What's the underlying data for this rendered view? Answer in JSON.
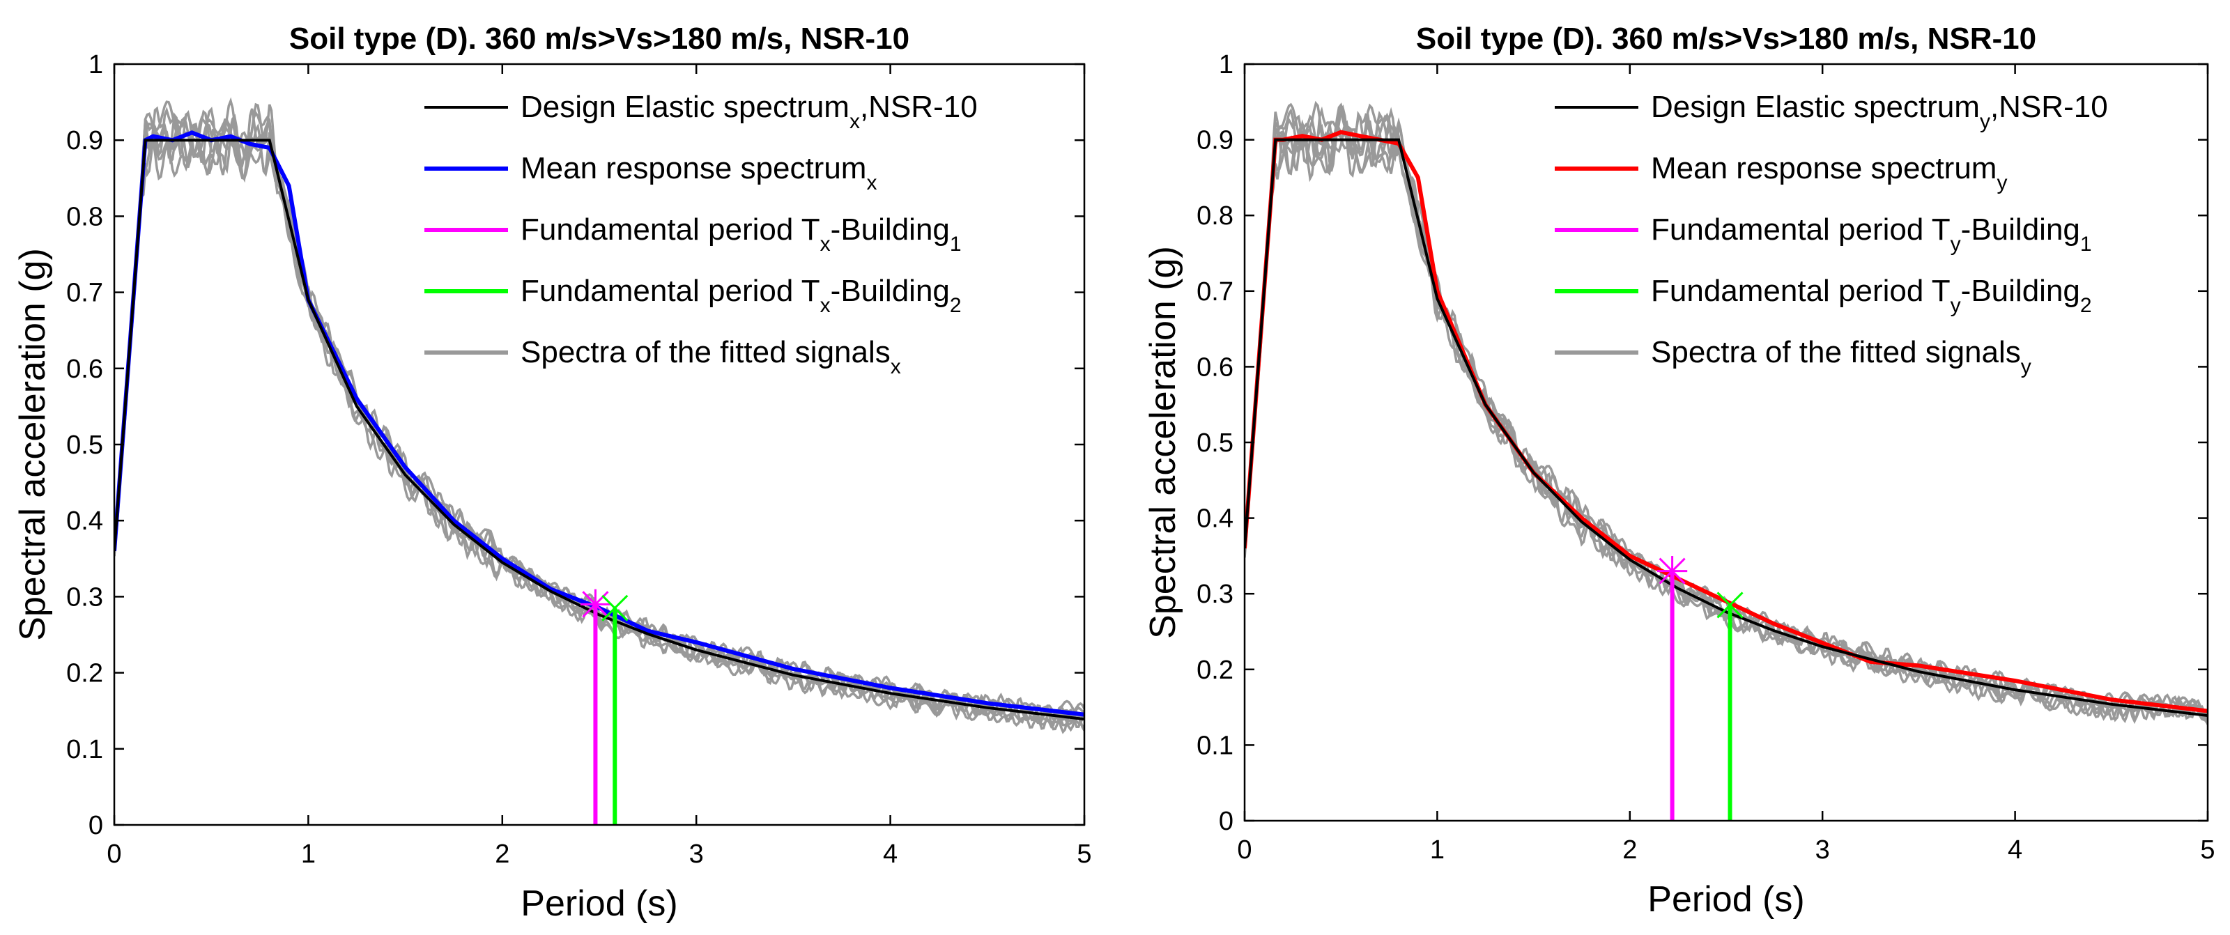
{
  "chart_data": [
    {
      "type": "line",
      "title": "Soil type (D). 360 m/s>Vs>180 m/s, NSR-10",
      "xlabel": "Period (s)",
      "ylabel": "Spectral acceleration (g)",
      "xlim": [
        0,
        5
      ],
      "ylim": [
        0,
        1
      ],
      "xticks": [
        "0",
        "1",
        "2",
        "3",
        "4",
        "5"
      ],
      "yticks": [
        "0",
        "0.1",
        "0.2",
        "0.3",
        "0.4",
        "0.5",
        "0.6",
        "0.7",
        "0.8",
        "0.9",
        "1"
      ],
      "grid": false,
      "legend_position": "top-right",
      "legend": [
        {
          "key": "design",
          "text": "Design Elastic spectrum",
          "sub": "x",
          "suffix": ",NSR-10",
          "color": "#000000"
        },
        {
          "key": "mean",
          "text": "Mean response spectrum",
          "sub": "x",
          "suffix": "",
          "color": "#0000ff"
        },
        {
          "key": "b1",
          "text": "Fundamental period T",
          "sub": "x",
          "suffix": "-Building",
          "sub2": "1",
          "color": "#ff00ff"
        },
        {
          "key": "b2",
          "text": "Fundamental period T",
          "sub": "x",
          "suffix": "-Building",
          "sub2": "2",
          "color": "#00ff00"
        },
        {
          "key": "signals",
          "text": "Spectra of the fitted signals",
          "sub": "x",
          "suffix": "",
          "color": "#999999"
        }
      ],
      "design_spectrum": {
        "x": [
          0,
          0.16,
          0.8,
          1.0,
          1.25,
          1.5,
          1.75,
          2.0,
          2.25,
          2.5,
          2.75,
          3.0,
          3.5,
          4.0,
          4.5,
          5.0
        ],
        "y": [
          0.36,
          0.9,
          0.9,
          0.69,
          0.55,
          0.46,
          0.395,
          0.345,
          0.307,
          0.276,
          0.251,
          0.23,
          0.197,
          0.173,
          0.154,
          0.139
        ]
      },
      "mean_spectrum": {
        "x": [
          0,
          0.16,
          0.2,
          0.3,
          0.4,
          0.5,
          0.6,
          0.7,
          0.8,
          0.9,
          1.0,
          1.25,
          1.5,
          1.75,
          2.0,
          2.25,
          2.5,
          2.75,
          3.0,
          3.5,
          4.0,
          4.5,
          5.0
        ],
        "y": [
          0.36,
          0.9,
          0.905,
          0.9,
          0.91,
          0.9,
          0.905,
          0.895,
          0.89,
          0.84,
          0.69,
          0.56,
          0.47,
          0.4,
          0.35,
          0.31,
          0.285,
          0.255,
          0.24,
          0.205,
          0.18,
          0.16,
          0.145
        ]
      },
      "building_periods": [
        {
          "name": "Building1",
          "period": 2.48,
          "sa": 0.29,
          "color": "#ff00ff"
        },
        {
          "name": "Building2",
          "period": 2.58,
          "sa": 0.285,
          "color": "#00ff00"
        }
      ],
      "fitted_signal_count": 7,
      "colors": {
        "design": "#000000",
        "mean": "#0000ff",
        "b1": "#ff00ff",
        "b2": "#00ff00",
        "signals": "#999999"
      }
    },
    {
      "type": "line",
      "title": "Soil type (D). 360 m/s>Vs>180 m/s, NSR-10",
      "xlabel": "Period (s)",
      "ylabel": "Spectral acceleration (g)",
      "xlim": [
        0,
        5
      ],
      "ylim": [
        0,
        1
      ],
      "xticks": [
        "0",
        "1",
        "2",
        "3",
        "4",
        "5"
      ],
      "yticks": [
        "0",
        "0.1",
        "0.2",
        "0.3",
        "0.4",
        "0.5",
        "0.6",
        "0.7",
        "0.8",
        "0.9",
        "1"
      ],
      "grid": false,
      "legend_position": "top-right",
      "legend": [
        {
          "key": "design",
          "text": "Design Elastic spectrum",
          "sub": "y",
          "suffix": ",NSR-10",
          "color": "#000000"
        },
        {
          "key": "mean",
          "text": "Mean response spectrum",
          "sub": "y",
          "suffix": "",
          "color": "#ff0000"
        },
        {
          "key": "b1",
          "text": "Fundamental period T",
          "sub": "y",
          "suffix": "-Building",
          "sub2": "1",
          "color": "#ff00ff"
        },
        {
          "key": "b2",
          "text": "Fundamental period T",
          "sub": "y",
          "suffix": "-Building",
          "sub2": "2",
          "color": "#00ff00"
        },
        {
          "key": "signals",
          "text": "Spectra of the fitted signals",
          "sub": "y",
          "suffix": "",
          "color": "#999999"
        }
      ],
      "design_spectrum": {
        "x": [
          0,
          0.16,
          0.8,
          1.0,
          1.25,
          1.5,
          1.75,
          2.0,
          2.25,
          2.5,
          2.75,
          3.0,
          3.5,
          4.0,
          4.5,
          5.0
        ],
        "y": [
          0.36,
          0.9,
          0.9,
          0.69,
          0.55,
          0.46,
          0.395,
          0.345,
          0.307,
          0.276,
          0.251,
          0.23,
          0.197,
          0.173,
          0.154,
          0.139
        ]
      },
      "mean_spectrum": {
        "x": [
          0,
          0.16,
          0.2,
          0.3,
          0.4,
          0.5,
          0.6,
          0.7,
          0.8,
          0.9,
          1.0,
          1.25,
          1.5,
          1.75,
          2.0,
          2.25,
          2.5,
          2.75,
          3.0,
          3.25,
          3.5,
          4.0,
          4.5,
          5.0
        ],
        "y": [
          0.36,
          0.9,
          0.9,
          0.905,
          0.9,
          0.91,
          0.905,
          0.9,
          0.895,
          0.85,
          0.7,
          0.55,
          0.46,
          0.4,
          0.35,
          0.32,
          0.29,
          0.26,
          0.235,
          0.21,
          0.205,
          0.185,
          0.16,
          0.145
        ]
      },
      "building_periods": [
        {
          "name": "Building1",
          "period": 2.22,
          "sa": 0.33,
          "color": "#ff00ff"
        },
        {
          "name": "Building2",
          "period": 2.52,
          "sa": 0.285,
          "color": "#00ff00"
        }
      ],
      "fitted_signal_count": 7,
      "colors": {
        "design": "#000000",
        "mean": "#ff0000",
        "b1": "#ff00ff",
        "b2": "#00ff00",
        "signals": "#999999"
      }
    }
  ]
}
